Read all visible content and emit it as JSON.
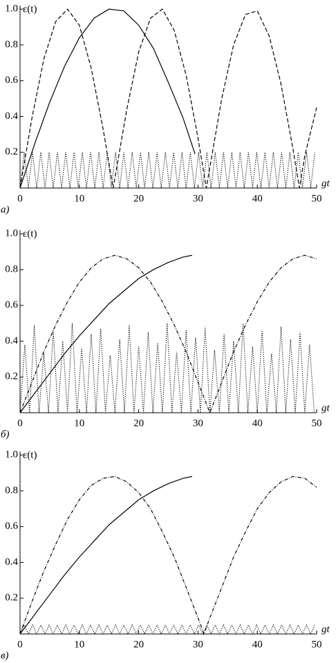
{
  "chart_data": [
    {
      "type": "line",
      "panel_label": "а)",
      "ylabel": "ε(t)",
      "xlabel": "gt",
      "xlim": [
        0,
        50
      ],
      "ylim": [
        0,
        1.02
      ],
      "xticks": [
        0,
        10,
        20,
        30,
        40,
        50
      ],
      "yticks": [
        0.2,
        0.4,
        0.6,
        0.8,
        {
          "value": 1,
          "label": "1.0"
        }
      ],
      "series": [
        {
          "color": "#000",
          "style": "solid",
          "x": [
            0,
            2.5,
            5,
            7.5,
            10,
            12.5,
            15,
            17.5,
            20,
            22.5,
            25,
            27.5,
            29.5
          ],
          "values": [
            0,
            0.25,
            0.48,
            0.68,
            0.84,
            0.95,
            1.0,
            0.99,
            0.91,
            0.78,
            0.59,
            0.39,
            0.19
          ]
        },
        {
          "color": "#000",
          "style": "dashed",
          "x": [
            0,
            2,
            4,
            6,
            8,
            10,
            12,
            14,
            15.7,
            18,
            20,
            22,
            24,
            26,
            28,
            30,
            31.4,
            34,
            36,
            38,
            40,
            42,
            44,
            46,
            47.1,
            48,
            50
          ],
          "values": [
            0,
            0.39,
            0.72,
            0.93,
            1.0,
            0.91,
            0.67,
            0.33,
            0,
            0.44,
            0.76,
            0.95,
            1.0,
            0.88,
            0.63,
            0.28,
            0,
            0.5,
            0.8,
            0.97,
            0.99,
            0.85,
            0.58,
            0.22,
            0,
            0.18,
            0.45
          ]
        },
        {
          "color": "#000",
          "style": "dotted",
          "x": [
            0,
            0.7,
            1.4,
            2.1,
            2.8,
            3.5,
            4.2,
            4.9,
            5.6,
            6.3,
            7,
            7.7,
            8.4,
            9.1,
            9.8,
            10.5,
            11.2,
            11.9,
            12.6,
            13.3,
            14,
            14.7,
            15.4,
            16.1,
            16.8,
            17.5,
            18.2,
            18.9,
            19.6,
            20.3,
            21,
            21.7,
            22.4,
            23.1,
            23.8,
            24.5,
            25.2,
            25.9,
            26.6,
            27.3,
            28,
            28.7,
            29.4,
            30.1,
            30.8,
            31.5,
            32.2,
            32.9,
            33.6,
            34.3,
            35,
            35.7,
            36.4,
            37.1,
            37.8,
            38.5,
            39.2,
            39.9,
            40.6,
            41.3,
            42,
            42.7,
            43.4,
            44.1,
            44.8,
            45.5,
            46.2,
            46.9,
            47.6,
            48.3,
            49,
            49.7
          ],
          "values": [
            0,
            0.2,
            0,
            0.2,
            0,
            0.2,
            0,
            0.2,
            0,
            0.2,
            0,
            0.2,
            0,
            0.2,
            0,
            0.2,
            0,
            0.2,
            0,
            0.2,
            0,
            0.2,
            0,
            0.2,
            0,
            0.2,
            0,
            0.2,
            0,
            0.2,
            0,
            0.2,
            0,
            0.2,
            0,
            0.2,
            0,
            0.2,
            0,
            0.2,
            0,
            0.2,
            0,
            0.2,
            0,
            0.2,
            0,
            0.2,
            0,
            0.2,
            0,
            0.2,
            0,
            0.2,
            0,
            0.2,
            0,
            0.2,
            0,
            0.2,
            0,
            0.2,
            0,
            0.2,
            0,
            0.2,
            0,
            0.2,
            0,
            0.2,
            0,
            0.2
          ]
        }
      ]
    },
    {
      "type": "line",
      "panel_label": "б)",
      "ylabel": "ε(t)",
      "xlabel": "gt",
      "xlim": [
        0,
        50
      ],
      "ylim": [
        0,
        1.02
      ],
      "xticks": [
        0,
        10,
        20,
        30,
        40,
        50
      ],
      "yticks": [
        0.2,
        0.4,
        0.6,
        0.8,
        {
          "value": 1,
          "label": "1.0"
        }
      ],
      "series": [
        {
          "color": "#000",
          "style": "solid",
          "x": [
            0,
            2.5,
            5,
            7.5,
            10,
            12.5,
            15,
            17.5,
            20,
            22.5,
            25,
            27.5,
            29
          ],
          "values": [
            0,
            0.11,
            0.22,
            0.33,
            0.43,
            0.52,
            0.61,
            0.68,
            0.75,
            0.8,
            0.84,
            0.87,
            0.88
          ]
        },
        {
          "color": "#000",
          "style": "dashdot",
          "x": [
            0,
            2,
            4,
            6,
            8,
            10,
            12,
            14,
            16,
            18,
            20,
            22,
            24,
            26,
            28,
            30,
            32,
            34,
            36,
            38,
            40,
            42,
            44,
            46,
            48,
            50
          ],
          "values": [
            0,
            0.17,
            0.34,
            0.49,
            0.62,
            0.73,
            0.81,
            0.86,
            0.88,
            0.86,
            0.81,
            0.73,
            0.62,
            0.49,
            0.34,
            0.17,
            0,
            0.17,
            0.34,
            0.49,
            0.62,
            0.73,
            0.81,
            0.86,
            0.88,
            0.86
          ]
        },
        {
          "color": "#000",
          "style": "dotted",
          "x": [
            0,
            0.8,
            1.6,
            2.4,
            3.2,
            4,
            4.8,
            5.6,
            6.4,
            7.2,
            8,
            8.8,
            9.6,
            10.4,
            11.2,
            12,
            12.8,
            13.6,
            14.4,
            15.2,
            16,
            16.8,
            17.6,
            18.4,
            19.2,
            20,
            20.8,
            21.6,
            22.4,
            23.2,
            24,
            24.8,
            25.6,
            26.4,
            27.2,
            28,
            28.8,
            29.6,
            30.4,
            31.2,
            32,
            32.8,
            33.6,
            34.4,
            35.2,
            36,
            36.8,
            37.6,
            38.4,
            39.2,
            40,
            40.8,
            41.6,
            42.4,
            43.2,
            44,
            44.8,
            45.6,
            46.4,
            47.2,
            48,
            48.8,
            49.6
          ],
          "values": [
            0,
            0.38,
            0,
            0.49,
            0,
            0.33,
            0,
            0.46,
            0,
            0.4,
            0,
            0.5,
            0,
            0.36,
            0,
            0.44,
            0,
            0.47,
            0,
            0.32,
            0,
            0.41,
            0,
            0.49,
            0,
            0.37,
            0,
            0.45,
            0,
            0.39,
            0,
            0.5,
            0,
            0.34,
            0,
            0.46,
            0,
            0.42,
            0,
            0.48,
            0,
            0.35,
            0,
            0.44,
            0,
            0.4,
            0,
            0.5,
            0,
            0.37,
            0,
            0.46,
            0,
            0.33,
            0,
            0.48,
            0,
            0.41,
            0,
            0.45,
            0,
            0.38,
            0
          ]
        }
      ]
    },
    {
      "type": "line",
      "panel_label": "в)",
      "ylabel": "ε(t)",
      "xlabel": "gt",
      "xlim": [
        0,
        50
      ],
      "ylim": [
        0,
        1.02
      ],
      "xticks": [
        0,
        10,
        20,
        30,
        40,
        50
      ],
      "yticks": [
        0.2,
        0.4,
        0.6,
        0.8,
        {
          "value": 1,
          "label": "1.0"
        }
      ],
      "series": [
        {
          "color": "#000",
          "style": "solid",
          "x": [
            0,
            2.5,
            5,
            7.5,
            10,
            12.5,
            15,
            17.5,
            20,
            22.5,
            25,
            27.5,
            29
          ],
          "values": [
            0,
            0.11,
            0.22,
            0.33,
            0.43,
            0.52,
            0.61,
            0.68,
            0.75,
            0.8,
            0.84,
            0.87,
            0.88
          ]
        },
        {
          "color": "#000",
          "style": "dashdot",
          "x": [
            0,
            2,
            4,
            6,
            8,
            10,
            12,
            14,
            16,
            18,
            20,
            22,
            24,
            26,
            28,
            30,
            31,
            32,
            34,
            36,
            38,
            40,
            42,
            44,
            46,
            48,
            50
          ],
          "values": [
            0,
            0.18,
            0.35,
            0.5,
            0.64,
            0.75,
            0.83,
            0.87,
            0.88,
            0.85,
            0.79,
            0.7,
            0.57,
            0.43,
            0.26,
            0.09,
            0,
            0.09,
            0.26,
            0.43,
            0.57,
            0.7,
            0.79,
            0.85,
            0.88,
            0.87,
            0.82
          ]
        },
        {
          "color": "#000",
          "style": "dotted",
          "x": [
            0,
            0.7,
            1.4,
            2.1,
            2.8,
            3.5,
            4.2,
            4.9,
            5.6,
            6.3,
            7,
            7.7,
            8.4,
            9.1,
            9.8,
            10.5,
            11.2,
            11.9,
            12.6,
            13.3,
            14,
            14.7,
            15.4,
            16.1,
            16.8,
            17.5,
            18.2,
            18.9,
            19.6,
            20.3,
            21,
            21.7,
            22.4,
            23.1,
            23.8,
            24.5,
            25.2,
            25.9,
            26.6,
            27.3,
            28,
            28.7,
            29.4,
            30.1,
            30.8,
            31.5,
            32.2,
            32.9,
            33.6,
            34.3,
            35,
            35.7,
            36.4,
            37.1,
            37.8,
            38.5,
            39.2,
            39.9,
            40.6,
            41.3,
            42,
            42.7,
            43.4,
            44.1,
            44.8,
            45.5,
            46.2,
            46.9,
            47.6,
            48.3,
            49,
            49.7
          ],
          "values": [
            0,
            0.05,
            0,
            0.05,
            0,
            0.05,
            0,
            0.05,
            0,
            0.05,
            0,
            0.05,
            0,
            0.05,
            0,
            0.05,
            0,
            0.05,
            0,
            0.05,
            0,
            0.05,
            0,
            0.05,
            0,
            0.05,
            0,
            0.05,
            0,
            0.05,
            0,
            0.05,
            0,
            0.05,
            0,
            0.05,
            0,
            0.05,
            0,
            0.05,
            0,
            0.05,
            0,
            0.05,
            0,
            0.05,
            0,
            0.05,
            0,
            0.05,
            0,
            0.05,
            0,
            0.05,
            0,
            0.05,
            0,
            0.05,
            0,
            0.05,
            0,
            0.05,
            0,
            0.05,
            0,
            0.05,
            0,
            0.05,
            0,
            0.05,
            0,
            0.05
          ]
        }
      ]
    }
  ]
}
